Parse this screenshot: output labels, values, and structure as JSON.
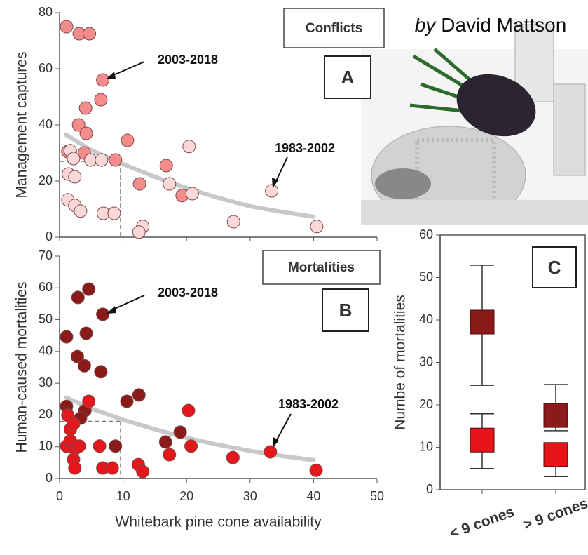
{
  "credit": {
    "prefix": "by",
    "name": "David Mattson"
  },
  "chart_data": [
    {
      "type": "scatter",
      "panel_label": "A",
      "title": "Conflicts",
      "ylabel": "Management captures",
      "xlim": [
        0,
        50
      ],
      "xticks": [
        0,
        10,
        20,
        30,
        40,
        50
      ],
      "ylim": [
        0,
        80
      ],
      "yticks": [
        0,
        20,
        40,
        60,
        80
      ],
      "series": [
        {
          "name": "2003-2018",
          "color": "#f48c8c",
          "x": [
            1.1,
            3.1,
            4.7,
            6.8,
            6.5,
            4.1,
            3.0,
            4.2,
            1.3,
            3.9,
            8.8,
            10.7,
            16.8,
            12.6,
            19.3
          ],
          "values": [
            75,
            72.5,
            72.5,
            56,
            49,
            46,
            40,
            37,
            30.5,
            30,
            27.5,
            34.5,
            25.5,
            19,
            14.8
          ]
        },
        {
          "name": "1983-2002",
          "color": "#fbd8d8",
          "x": [
            1.7,
            2.2,
            1.4,
            2.4,
            4.9,
            6.6,
            1.3,
            2.4,
            3.3,
            6.9,
            8.6,
            17.3,
            20.9,
            20.4,
            13.1,
            12.5,
            27.4,
            33.4,
            40.5
          ],
          "values": [
            30.8,
            28,
            22.5,
            21.5,
            27.5,
            27.5,
            13.3,
            11.3,
            9.3,
            8.5,
            8.5,
            19,
            15.5,
            32.3,
            3.8,
            1.8,
            5.5,
            16.5,
            3.8
          ]
        }
      ],
      "fit": {
        "color": "#c8c8c8",
        "x": [
          1,
          5,
          10,
          15,
          20,
          25,
          30,
          35,
          40
        ],
        "values": [
          36.5,
          31,
          26,
          21.5,
          17.5,
          14,
          11,
          9,
          7.3
        ]
      },
      "reference": {
        "x": 9.6,
        "y": 27
      }
    },
    {
      "type": "scatter",
      "panel_label": "B",
      "title": "Mortalities",
      "ylabel": "Human-caused mortalities",
      "xlabel": "Whitebark pine cone availability",
      "xlim": [
        0,
        50
      ],
      "xticks": [
        0,
        10,
        20,
        30,
        40,
        50
      ],
      "ylim": [
        0,
        70
      ],
      "yticks": [
        0,
        10,
        20,
        30,
        40,
        50,
        60,
        70
      ],
      "series": [
        {
          "name": "2003-2018",
          "color": "#8b1a1a",
          "x": [
            1.1,
            2.9,
            4.6,
            6.8,
            2.8,
            3.9,
            4.2,
            6.5,
            1.1,
            4.0,
            3.3,
            8.8,
            16.7,
            12.5,
            10.6,
            19.0
          ],
          "values": [
            44.6,
            57,
            59.6,
            51.7,
            38.4,
            35.5,
            45.7,
            33.6,
            22.7,
            21.4,
            19,
            10.2,
            11.5,
            26.3,
            24.3,
            14.6
          ]
        },
        {
          "name": "1983-2002",
          "color": "#e3171c",
          "x": [
            1.3,
            1.7,
            2.2,
            1.1,
            1.7,
            2.4,
            2.2,
            2.4,
            3.1,
            4.6,
            6.3,
            6.8,
            8.3,
            12.4,
            13.1,
            17.3,
            20.3,
            20.7,
            27.3,
            33.2,
            40.4
          ],
          "values": [
            19.9,
            15.5,
            17.2,
            10.2,
            11.9,
            9.3,
            6,
            3.3,
            10.2,
            24.3,
            10.2,
            3.3,
            3.3,
            4.4,
            2.2,
            7.5,
            21.4,
            10.2,
            6.6,
            8.4,
            2.6
          ]
        }
      ],
      "fit": {
        "color": "#c8c8c8",
        "x": [
          1,
          5,
          10,
          15,
          20,
          25,
          30,
          35,
          40
        ],
        "values": [
          25.5,
          22,
          18.5,
          15.5,
          12.8,
          10.6,
          8.7,
          7.1,
          5.8
        ]
      },
      "reference": {
        "x": 9.6,
        "y": 18
      }
    },
    {
      "type": "errorbar",
      "panel_label": "C",
      "ylabel": "Numbe of mortalities",
      "categories": [
        "< 9 cones",
        "> 9 cones"
      ],
      "ylim": [
        0,
        60
      ],
      "yticks": [
        0,
        10,
        20,
        30,
        40,
        50,
        60
      ],
      "series": [
        {
          "name": "2003-2018",
          "color": "#8b1a1a",
          "values": [
            39.5,
            17.5
          ],
          "low": [
            24.6,
            13.9
          ],
          "high": [
            52.9,
            24.8
          ]
        },
        {
          "name": "1983-2002",
          "color": "#e8141a",
          "values": [
            11.7,
            8.3
          ],
          "low": [
            5,
            3.1
          ],
          "high": [
            17.9,
            10.1
          ]
        }
      ]
    }
  ]
}
